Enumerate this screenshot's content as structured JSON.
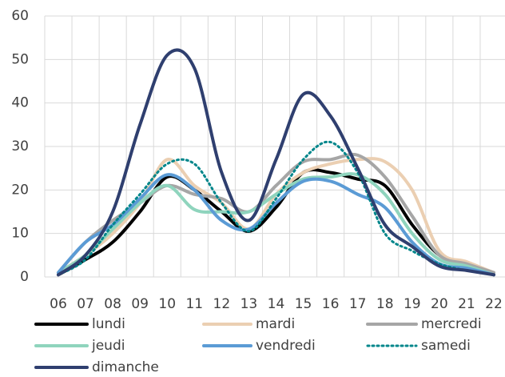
{
  "chart_data": {
    "type": "line",
    "categories": [
      "06",
      "07",
      "08",
      "09",
      "10",
      "11",
      "12",
      "13",
      "14",
      "15",
      "16",
      "17",
      "18",
      "19",
      "20",
      "21",
      "22"
    ],
    "series": [
      {
        "name": "lundi",
        "color": "#000000",
        "values": [
          0.5,
          4,
          8,
          15,
          23,
          20,
          15,
          10.5,
          16,
          24,
          24,
          22.5,
          21,
          12,
          5,
          2.5,
          0.5
        ]
      },
      {
        "name": "mardi",
        "color": "#ebcfb2",
        "values": [
          1,
          5,
          10,
          17,
          27,
          21,
          17,
          11,
          19,
          24,
          26,
          27,
          26.5,
          20,
          6,
          3.5,
          1
        ]
      },
      {
        "name": "mercredi",
        "color": "#a6a6a6",
        "values": [
          1,
          8,
          13,
          17,
          21,
          19,
          18,
          15,
          21,
          26.5,
          27,
          28,
          23,
          14,
          5,
          3,
          1
        ]
      },
      {
        "name": "jeudi",
        "color": "#8fd4bd",
        "values": [
          1,
          5,
          11,
          17,
          21,
          15.5,
          15,
          15,
          19,
          22.5,
          23,
          23.5,
          19,
          10,
          4,
          2.5,
          0.5
        ]
      },
      {
        "name": "vendredi",
        "color": "#5b9bd5",
        "values": [
          1,
          8,
          12,
          18,
          23.5,
          20,
          13,
          11,
          17,
          22,
          22,
          19,
          16,
          8,
          3,
          2,
          0.5
        ]
      },
      {
        "name": "samedi",
        "color": "#00868b",
        "dashed": true,
        "values": [
          0.5,
          4,
          12,
          19,
          26,
          26,
          17,
          10.5,
          18,
          27,
          31,
          24,
          10,
          6,
          3,
          1.5,
          0.5
        ]
      },
      {
        "name": "dimanche",
        "color": "#2f3f6f",
        "values": [
          0.5,
          5,
          15,
          35,
          51,
          48,
          24,
          13,
          27,
          42,
          37,
          25,
          12,
          7,
          2.5,
          1.5,
          0.5
        ]
      }
    ],
    "ylim": [
      0,
      60
    ],
    "yticks": [
      0,
      10,
      20,
      30,
      40,
      50,
      60
    ],
    "grid": true
  }
}
